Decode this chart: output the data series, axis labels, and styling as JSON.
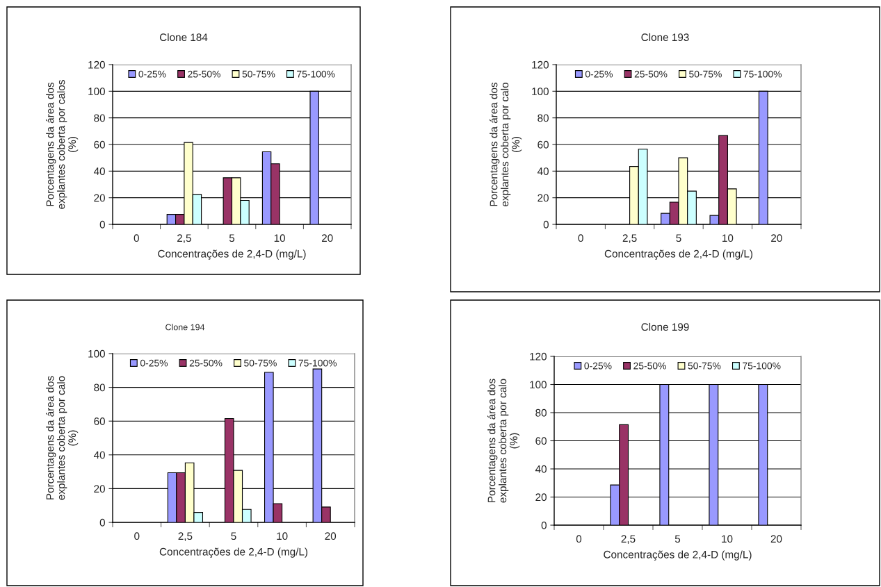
{
  "chart_data": [
    {
      "type": "bar",
      "title": "Clone 184",
      "xlabel": "Concentrações de 2,4-D (mg/L)",
      "ylabel": "Porcentagens da área dos\nexplantes coberta por calos\n(%)",
      "categories": [
        "0",
        "2,5",
        "5",
        "10",
        "20"
      ],
      "ylim": [
        0,
        120
      ],
      "yticks": [
        0,
        20,
        40,
        60,
        80,
        100,
        120
      ],
      "grid": "y",
      "legend": "top",
      "series": [
        {
          "name": "0-25%",
          "color": "#9999ff",
          "values": [
            null,
            7.5,
            null,
            54.5,
            100
          ]
        },
        {
          "name": "25-50%",
          "color": "#993366",
          "values": [
            null,
            7.5,
            35,
            45.5,
            null
          ]
        },
        {
          "name": "50-75%",
          "color": "#ffffcc",
          "values": [
            null,
            61.5,
            35,
            null,
            null
          ]
        },
        {
          "name": "75-100%",
          "color": "#ccffff",
          "values": [
            null,
            22.5,
            18,
            null,
            null
          ]
        }
      ]
    },
    {
      "type": "bar",
      "title": "Clone 193",
      "xlabel": "Concentrações de 2,4-D (mg/L)",
      "ylabel": "Porcentagens da área dos\nexplantes coberta por calo\n(%)",
      "categories": [
        "0",
        "2,5",
        "5",
        "10",
        "20"
      ],
      "ylim": [
        0,
        120
      ],
      "yticks": [
        0,
        20,
        40,
        60,
        80,
        100,
        120
      ],
      "grid": "y",
      "legend": "top",
      "series": [
        {
          "name": "0-25%",
          "color": "#9999ff",
          "values": [
            null,
            null,
            8.3,
            6.7,
            100
          ]
        },
        {
          "name": "25-50%",
          "color": "#993366",
          "values": [
            null,
            null,
            16.7,
            66.7,
            null
          ]
        },
        {
          "name": "50-75%",
          "color": "#ffffcc",
          "values": [
            null,
            43.5,
            50,
            26.7,
            null
          ]
        },
        {
          "name": "75-100%",
          "color": "#ccffff",
          "values": [
            null,
            56.5,
            25,
            null,
            null
          ]
        }
      ]
    },
    {
      "type": "bar",
      "title": "Clone 194",
      "xlabel": "Concentrações de 2,4-D (mg/L)",
      "ylabel": "Porcentagens da área dos\nexplantes coberta por calo\n(%)",
      "categories": [
        "0",
        "2,5",
        "5",
        "10",
        "20"
      ],
      "ylim": [
        0,
        100
      ],
      "yticks": [
        0,
        20,
        40,
        60,
        80,
        100
      ],
      "grid": "y",
      "legend": "top",
      "series": [
        {
          "name": "0-25%",
          "color": "#9999ff",
          "values": [
            null,
            29.4,
            null,
            88.9,
            90.9
          ]
        },
        {
          "name": "25-50%",
          "color": "#993366",
          "values": [
            null,
            29.4,
            61.5,
            11.1,
            9.1
          ]
        },
        {
          "name": "50-75%",
          "color": "#ffffcc",
          "values": [
            null,
            35.3,
            30.8,
            null,
            null
          ]
        },
        {
          "name": "75-100%",
          "color": "#ccffff",
          "values": [
            null,
            5.9,
            7.7,
            null,
            null
          ]
        }
      ]
    },
    {
      "type": "bar",
      "title": "Clone 199",
      "xlabel": "Concentrações de 2,4-D (mg/L)",
      "ylabel": "Porcentagens da área dos\nexplantes coberta por calo\n(%)",
      "categories": [
        "0",
        "2,5",
        "5",
        "10",
        "20"
      ],
      "ylim": [
        0,
        120
      ],
      "yticks": [
        0,
        20,
        40,
        60,
        80,
        100,
        120
      ],
      "grid": "y",
      "legend": "top",
      "series": [
        {
          "name": "0-25%",
          "color": "#9999ff",
          "values": [
            null,
            28.6,
            100,
            100,
            100
          ]
        },
        {
          "name": "25-50%",
          "color": "#993366",
          "values": [
            null,
            71.4,
            null,
            null,
            null
          ]
        },
        {
          "name": "50-75%",
          "color": "#ffffcc",
          "values": [
            null,
            null,
            null,
            null,
            null
          ]
        },
        {
          "name": "75-100%",
          "color": "#ccffff",
          "values": [
            null,
            null,
            null,
            null,
            null
          ]
        }
      ]
    }
  ]
}
